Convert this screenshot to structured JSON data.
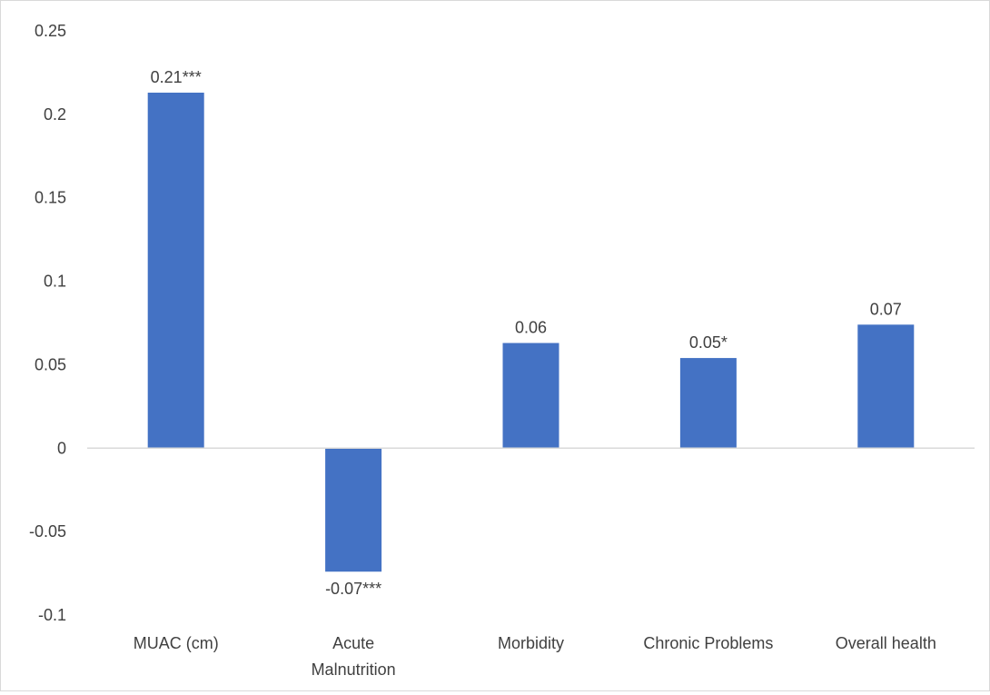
{
  "chart_data": {
    "type": "bar",
    "title": "",
    "xlabel": "",
    "ylabel": "",
    "categories": [
      [
        "MUAC (cm)"
      ],
      [
        "Acute",
        "Malnutrition"
      ],
      [
        "Morbidity"
      ],
      [
        "Chronic Problems"
      ],
      [
        "Overall health"
      ]
    ],
    "values": [
      0.213,
      -0.074,
      0.063,
      0.054,
      0.074
    ],
    "data_labels": [
      "0.21***",
      "-0.07***",
      "0.06",
      "0.05*",
      "0.07"
    ],
    "ylim": [
      -0.1,
      0.25
    ],
    "yticks": [
      {
        "value": 0.25,
        "label": "0.25"
      },
      {
        "value": 0.2,
        "label": "0.2"
      },
      {
        "value": 0.15,
        "label": "0.15"
      },
      {
        "value": 0.1,
        "label": "0.1"
      },
      {
        "value": 0.05,
        "label": "0.05"
      },
      {
        "value": 0,
        "label": "0"
      },
      {
        "value": -0.05,
        "label": "-0.05"
      },
      {
        "value": -0.1,
        "label": "-0.1"
      }
    ],
    "grid": false,
    "bar_color": "#4472C4",
    "axis_color": "#d9d9d9"
  }
}
